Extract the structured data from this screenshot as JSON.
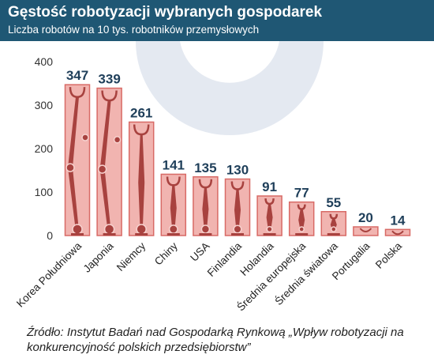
{
  "header": {
    "title": "Gęstość robotyzacji wybranych gospodarek",
    "subtitle": "Liczba robotów na 10 tys. robotników przemysłowych"
  },
  "colors": {
    "header_bg": "#1f5774",
    "bar_fill": "#f1b4b0",
    "bar_border": "#d86a66",
    "robot_arm": "#a8423f",
    "value_label": "#1f3f5a",
    "watermark": "#e4e9f1"
  },
  "chart_data": {
    "type": "bar",
    "title": "Gęstość robotyzacji wybranych gospodarek",
    "subtitle": "Liczba robotów na 10 tys. robotników przemysłowych",
    "categories": [
      "Korea Południowa",
      "Japonia",
      "Niemcy",
      "Chiny",
      "USA",
      "Finlandia",
      "Holandia",
      "Średnia europejska",
      "Średnia światowa",
      "Portugalia",
      "Polska"
    ],
    "values": [
      347,
      339,
      261,
      141,
      135,
      130,
      91,
      77,
      55,
      20,
      14
    ],
    "value_labels": [
      "347",
      "339",
      "261",
      "141",
      "135",
      "130",
      "91",
      "77",
      "55",
      "20",
      "14"
    ],
    "yticks": [
      "0",
      "100",
      "200",
      "300",
      "400"
    ],
    "ytick_values": [
      0,
      100,
      200,
      300,
      400
    ],
    "ylim": [
      0,
      400
    ],
    "grid": false,
    "legend": "none",
    "xlabel": "",
    "ylabel": ""
  },
  "source": "Źródło: Instytut Badań nad Gospodarką Rynkową „Wpływ robotyzacji na konkurencyjność polskich przedsiębiorstw”"
}
